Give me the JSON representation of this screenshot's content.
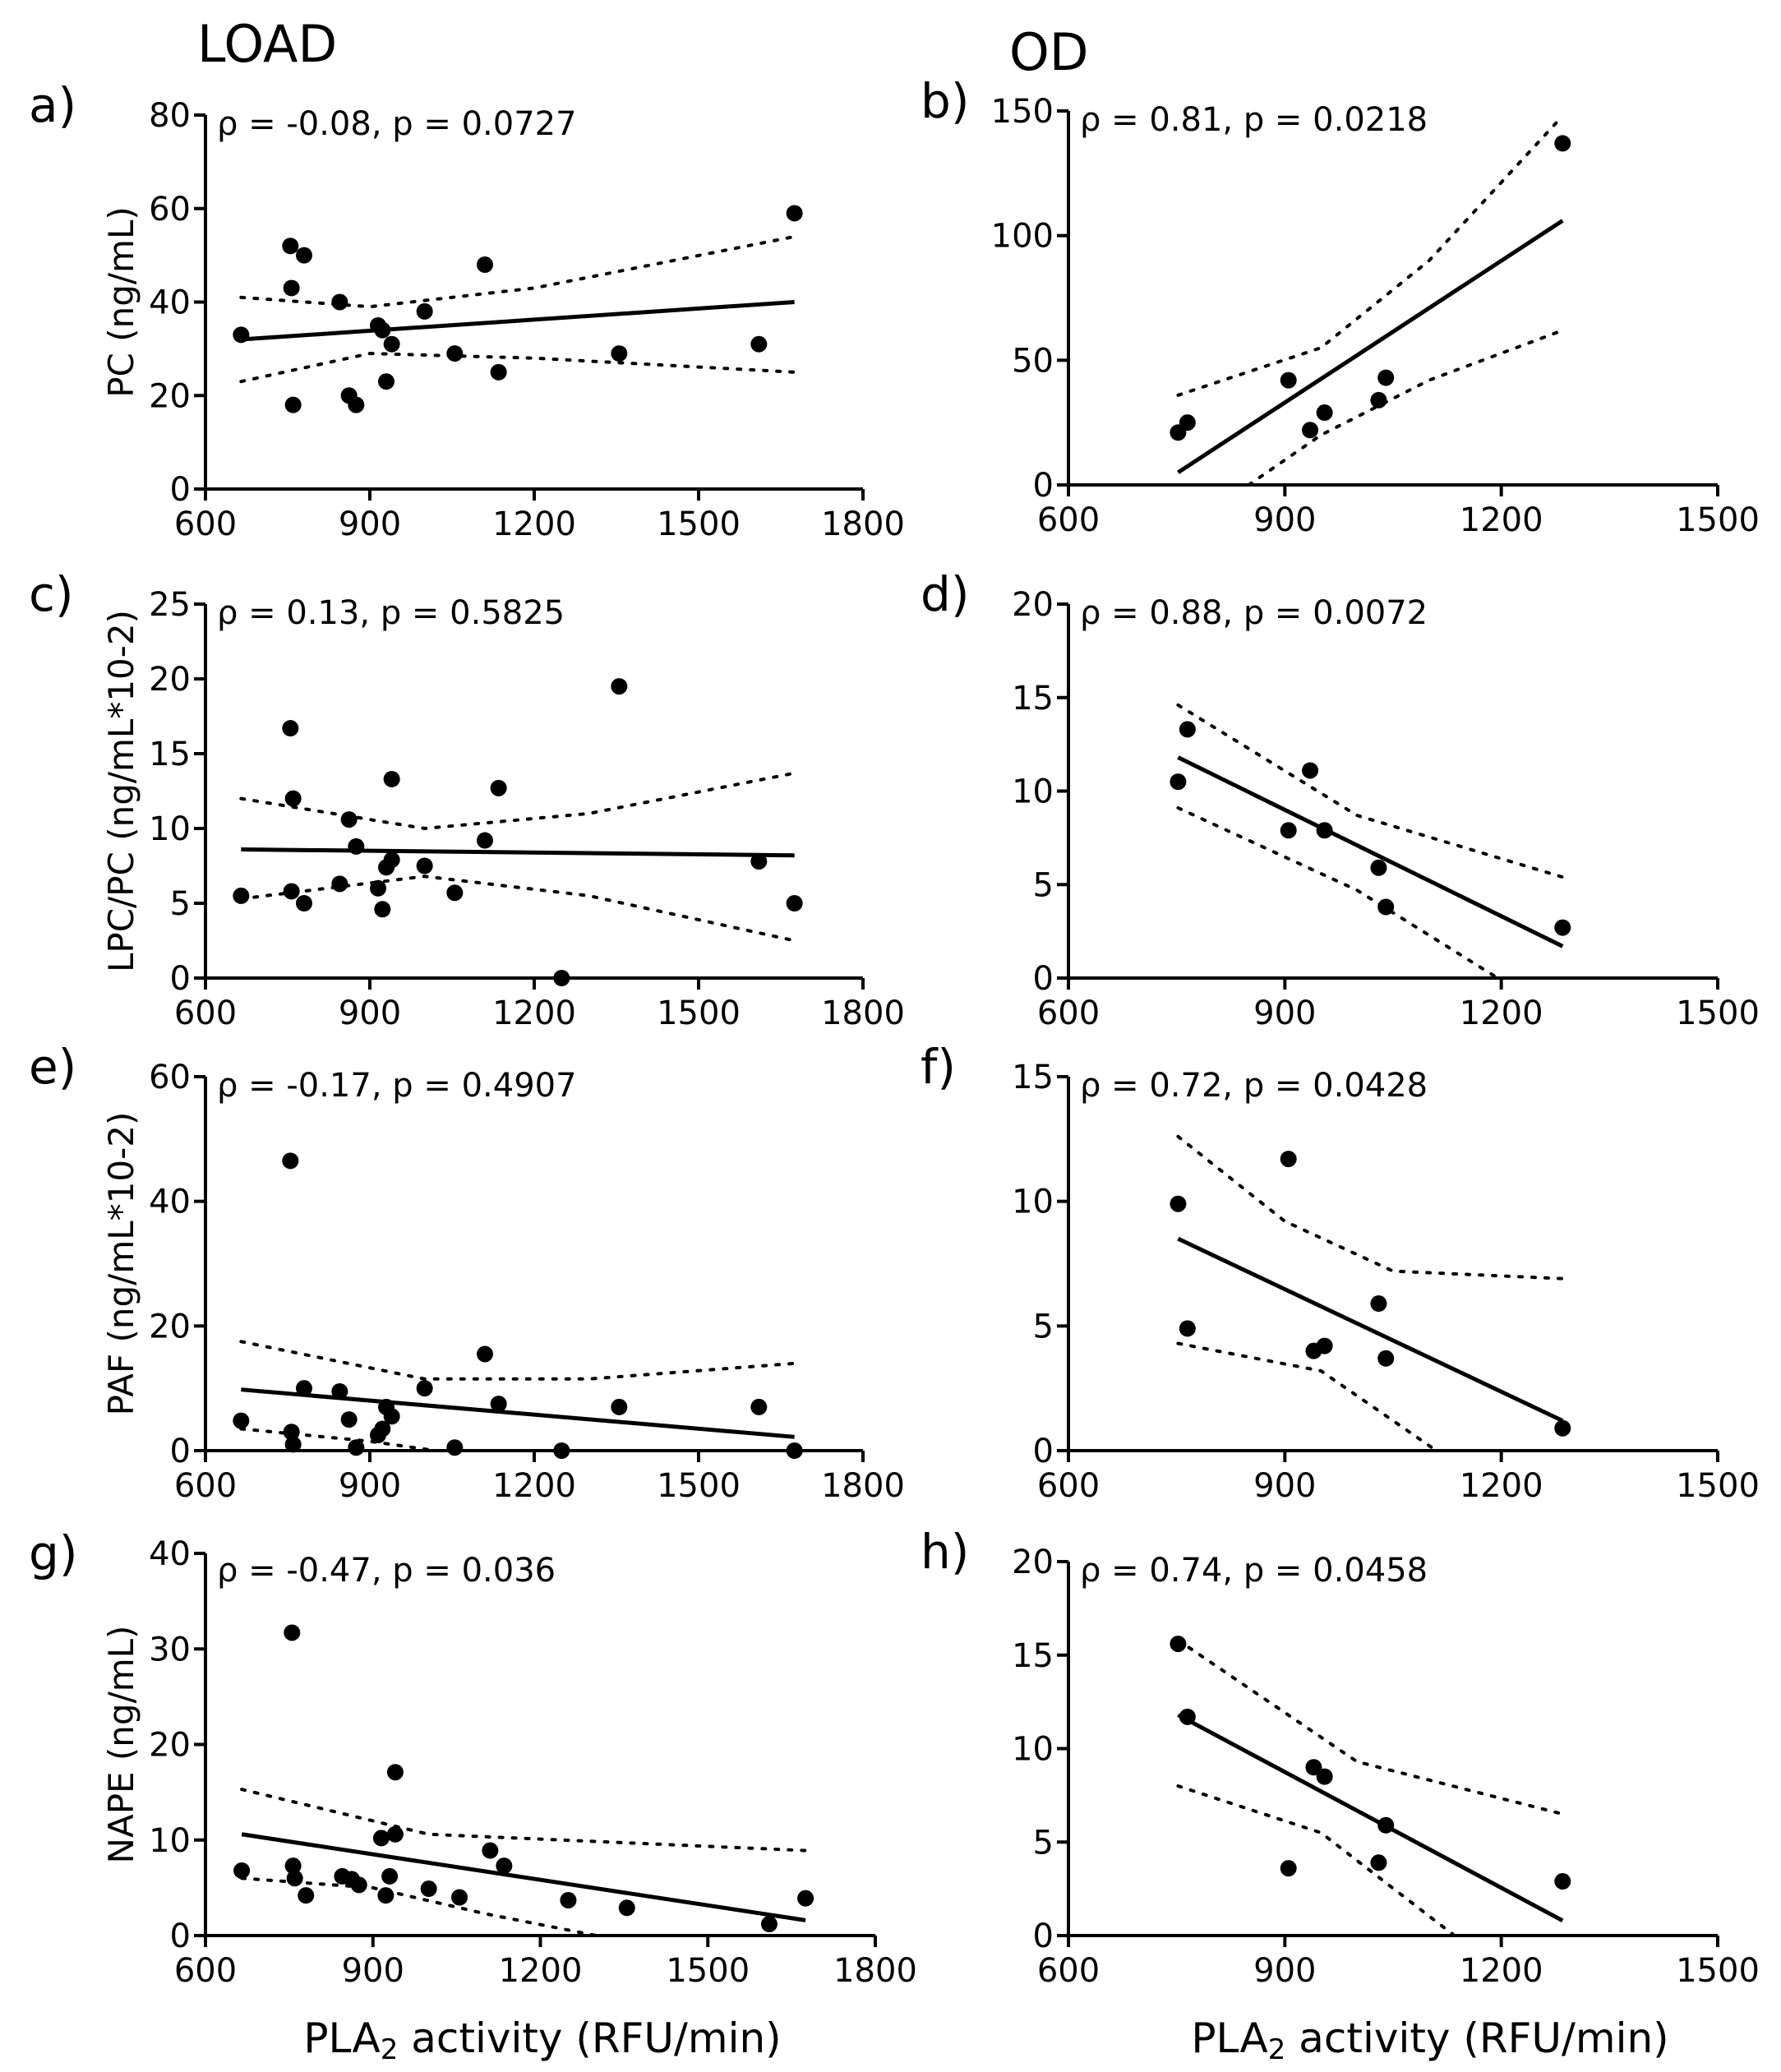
{
  "columns": {
    "left": "LOAD",
    "right": "OD"
  },
  "xlabel": {
    "prefix": "PLA",
    "sub": "2",
    "suffix": " activity (RFU/min)"
  },
  "chart_data": [
    {
      "id": "a",
      "panel_label": "a)",
      "type": "scatter",
      "annotation": "ρ = -0.08, p = 0.0727",
      "ylabel": "PC (ng/mL)",
      "xlim": [
        600,
        1800
      ],
      "xticks": [
        "600",
        "900",
        "1200",
        "1500",
        "1800"
      ],
      "ylim": [
        0,
        80
      ],
      "yticks": [
        "0",
        "20",
        "40",
        "60",
        "80"
      ],
      "points": [
        [
          665,
          33
        ],
        [
          755,
          52
        ],
        [
          757,
          43
        ],
        [
          760,
          18
        ],
        [
          780,
          50
        ],
        [
          845,
          40
        ],
        [
          862,
          20
        ],
        [
          875,
          18
        ],
        [
          915,
          35
        ],
        [
          923,
          34
        ],
        [
          930,
          23
        ],
        [
          940,
          31
        ],
        [
          1000,
          38
        ],
        [
          1055,
          29
        ],
        [
          1110,
          48
        ],
        [
          1135,
          25
        ],
        [
          1355,
          29
        ],
        [
          1610,
          31
        ],
        [
          1675,
          59
        ]
      ],
      "fit": [
        [
          665,
          32
        ],
        [
          1675,
          40
        ]
      ],
      "ci_upper": [
        [
          665,
          41
        ],
        [
          900,
          39
        ],
        [
          1200,
          43
        ],
        [
          1675,
          54
        ]
      ],
      "ci_lower": [
        [
          665,
          23
        ],
        [
          900,
          29
        ],
        [
          1200,
          28
        ],
        [
          1675,
          25
        ]
      ]
    },
    {
      "id": "b",
      "panel_label": "b)",
      "type": "scatter",
      "annotation": "ρ = 0.81, p = 0.0218",
      "ylabel": "",
      "xlim": [
        600,
        1500
      ],
      "xticks": [
        "600",
        "900",
        "1200",
        "1500"
      ],
      "ylim": [
        0,
        150
      ],
      "yticks": [
        "0",
        "50",
        "100",
        "150"
      ],
      "points": [
        [
          752,
          21
        ],
        [
          765,
          25
        ],
        [
          905,
          42
        ],
        [
          935,
          22
        ],
        [
          955,
          29
        ],
        [
          1030,
          34
        ],
        [
          1040,
          43
        ],
        [
          1285,
          137
        ]
      ],
      "fit": [
        [
          752,
          5
        ],
        [
          1285,
          106
        ]
      ],
      "ci_upper": [
        [
          752,
          36
        ],
        [
          950,
          55
        ],
        [
          1100,
          90
        ],
        [
          1285,
          148
        ]
      ],
      "ci_lower": [
        [
          850,
          0
        ],
        [
          950,
          20
        ],
        [
          1100,
          42
        ],
        [
          1285,
          62
        ]
      ]
    },
    {
      "id": "c",
      "panel_label": "c)",
      "type": "scatter",
      "annotation": "ρ = 0.13, p = 0.5825",
      "ylabel": "LPC/PC (ng/mL*10-2)",
      "xlim": [
        600,
        1800
      ],
      "xticks": [
        "600",
        "900",
        "1200",
        "1500",
        "1800"
      ],
      "ylim": [
        0,
        25
      ],
      "yticks": [
        "0",
        "5",
        "10",
        "15",
        "20",
        "25"
      ],
      "points": [
        [
          665,
          5.5
        ],
        [
          755,
          16.7
        ],
        [
          757,
          5.8
        ],
        [
          760,
          12
        ],
        [
          780,
          5
        ],
        [
          845,
          6.3
        ],
        [
          862,
          10.6
        ],
        [
          875,
          8.8
        ],
        [
          915,
          6
        ],
        [
          923,
          4.6
        ],
        [
          930,
          7.4
        ],
        [
          940,
          7.9
        ],
        [
          940,
          13.3
        ],
        [
          1000,
          7.5
        ],
        [
          1055,
          5.7
        ],
        [
          1110,
          9.2
        ],
        [
          1135,
          12.7
        ],
        [
          1250,
          0
        ],
        [
          1355,
          19.5
        ],
        [
          1610,
          7.8
        ],
        [
          1675,
          5
        ]
      ],
      "fit": [
        [
          665,
          8.6
        ],
        [
          1675,
          8.2
        ]
      ],
      "ci_upper": [
        [
          665,
          12
        ],
        [
          1000,
          10
        ],
        [
          1300,
          11
        ],
        [
          1675,
          13.7
        ]
      ],
      "ci_lower": [
        [
          665,
          5.3
        ],
        [
          1000,
          6.8
        ],
        [
          1300,
          5.5
        ],
        [
          1675,
          2.5
        ]
      ]
    },
    {
      "id": "d",
      "panel_label": "d)",
      "type": "scatter",
      "annotation": "ρ = 0.88, p = 0.0072",
      "ylabel": "",
      "xlim": [
        600,
        1500
      ],
      "xticks": [
        "600",
        "900",
        "1200",
        "1500"
      ],
      "ylim": [
        0,
        20
      ],
      "yticks": [
        "0",
        "5",
        "10",
        "15",
        "20"
      ],
      "points": [
        [
          752,
          10.5
        ],
        [
          765,
          13.3
        ],
        [
          905,
          7.9
        ],
        [
          935,
          11.1
        ],
        [
          955,
          7.9
        ],
        [
          1030,
          5.9
        ],
        [
          1040,
          3.8
        ],
        [
          1285,
          2.7
        ]
      ],
      "fit": [
        [
          752,
          11.8
        ],
        [
          1285,
          1.7
        ]
      ],
      "ci_upper": [
        [
          752,
          14.6
        ],
        [
          1000,
          8.7
        ],
        [
          1285,
          5.4
        ]
      ],
      "ci_lower": [
        [
          752,
          9.1
        ],
        [
          1000,
          4.7
        ],
        [
          1195,
          0
        ]
      ]
    },
    {
      "id": "e",
      "panel_label": "e)",
      "type": "scatter",
      "annotation": "ρ = -0.17, p = 0.4907",
      "ylabel": "PAF (ng/mL*10-2)",
      "xlim": [
        600,
        1800
      ],
      "xticks": [
        "600",
        "900",
        "1200",
        "1500",
        "1800"
      ],
      "ylim": [
        0,
        60
      ],
      "yticks": [
        "0",
        "20",
        "40",
        "60"
      ],
      "points": [
        [
          665,
          4.8
        ],
        [
          755,
          46.5
        ],
        [
          757,
          3
        ],
        [
          760,
          1
        ],
        [
          780,
          10
        ],
        [
          845,
          9.5
        ],
        [
          862,
          5
        ],
        [
          875,
          0.5
        ],
        [
          915,
          2.5
        ],
        [
          923,
          3.5
        ],
        [
          930,
          7
        ],
        [
          940,
          5.5
        ],
        [
          1000,
          10
        ],
        [
          1055,
          0.5
        ],
        [
          1110,
          15.5
        ],
        [
          1135,
          7.5
        ],
        [
          1250,
          0
        ],
        [
          1355,
          7
        ],
        [
          1610,
          7
        ],
        [
          1675,
          0
        ]
      ],
      "fit": [
        [
          665,
          9.8
        ],
        [
          1675,
          2.2
        ]
      ],
      "ci_upper": [
        [
          665,
          17.5
        ],
        [
          1000,
          11.5
        ],
        [
          1300,
          11.5
        ],
        [
          1675,
          14
        ]
      ],
      "ci_lower": [
        [
          665,
          3.5
        ],
        [
          900,
          1.5
        ],
        [
          1020,
          0
        ]
      ]
    },
    {
      "id": "f",
      "panel_label": "f)",
      "type": "scatter",
      "annotation": "ρ = 0.72, p = 0.0428",
      "ylabel": "",
      "xlim": [
        600,
        1500
      ],
      "xticks": [
        "600",
        "900",
        "1200",
        "1500"
      ],
      "ylim": [
        0,
        15
      ],
      "yticks": [
        "0",
        "5",
        "10",
        "15"
      ],
      "points": [
        [
          752,
          9.9
        ],
        [
          765,
          4.9
        ],
        [
          905,
          11.7
        ],
        [
          940,
          4
        ],
        [
          955,
          4.2
        ],
        [
          1030,
          5.9
        ],
        [
          1040,
          3.7
        ],
        [
          1285,
          0.9
        ]
      ],
      "fit": [
        [
          752,
          8.5
        ],
        [
          1285,
          1.2
        ]
      ],
      "ci_upper": [
        [
          752,
          12.6
        ],
        [
          900,
          9.2
        ],
        [
          1050,
          7.2
        ],
        [
          1285,
          6.9
        ]
      ],
      "ci_lower": [
        [
          752,
          4.3
        ],
        [
          950,
          3.2
        ],
        [
          1110,
          0
        ]
      ]
    },
    {
      "id": "g",
      "panel_label": "g)",
      "type": "scatter",
      "annotation": "ρ = -0.47, p = 0.036",
      "ylabel": "NAPE (ng/mL)",
      "xlim": [
        600,
        1800
      ],
      "xticks": [
        "600",
        "900",
        "1200",
        "1500",
        "1800"
      ],
      "ylim": [
        0,
        40
      ],
      "yticks": [
        "0",
        "10",
        "20",
        "30",
        "40"
      ],
      "points": [
        [
          665,
          6.8
        ],
        [
          755,
          31.7
        ],
        [
          757,
          7.3
        ],
        [
          760,
          6
        ],
        [
          780,
          4.2
        ],
        [
          845,
          6.2
        ],
        [
          862,
          5.9
        ],
        [
          875,
          5.3
        ],
        [
          915,
          10.2
        ],
        [
          923,
          4.2
        ],
        [
          930,
          6.2
        ],
        [
          940,
          10.6
        ],
        [
          940,
          17.1
        ],
        [
          1000,
          4.9
        ],
        [
          1055,
          4
        ],
        [
          1110,
          8.9
        ],
        [
          1135,
          7.3
        ],
        [
          1250,
          3.7
        ],
        [
          1355,
          2.9
        ],
        [
          1610,
          1.2
        ],
        [
          1675,
          3.9
        ]
      ],
      "fit": [
        [
          665,
          10.6
        ],
        [
          1675,
          1.6
        ]
      ],
      "ci_upper": [
        [
          665,
          15.3
        ],
        [
          1000,
          10.6
        ],
        [
          1675,
          8.9
        ]
      ],
      "ci_lower": [
        [
          665,
          6
        ],
        [
          900,
          5
        ],
        [
          1100,
          2.3
        ],
        [
          1300,
          0
        ]
      ]
    },
    {
      "id": "h",
      "panel_label": "h)",
      "type": "scatter",
      "annotation": "ρ = 0.74, p = 0.0458",
      "ylabel": "",
      "xlim": [
        600,
        1500
      ],
      "xticks": [
        "600",
        "900",
        "1200",
        "1500"
      ],
      "ylim": [
        0,
        20
      ],
      "yticks": [
        "0",
        "5",
        "10",
        "15",
        "20"
      ],
      "points": [
        [
          752,
          15.6
        ],
        [
          765,
          11.7
        ],
        [
          905,
          3.6
        ],
        [
          940,
          9
        ],
        [
          955,
          8.5
        ],
        [
          1030,
          3.9
        ],
        [
          1040,
          5.9
        ],
        [
          1285,
          2.9
        ]
      ],
      "fit": [
        [
          752,
          11.8
        ],
        [
          1285,
          0.8
        ]
      ],
      "ci_upper": [
        [
          752,
          15.8
        ],
        [
          1000,
          9.3
        ],
        [
          1285,
          6.5
        ]
      ],
      "ci_lower": [
        [
          752,
          8
        ],
        [
          950,
          5.5
        ],
        [
          1135,
          0
        ]
      ]
    }
  ]
}
